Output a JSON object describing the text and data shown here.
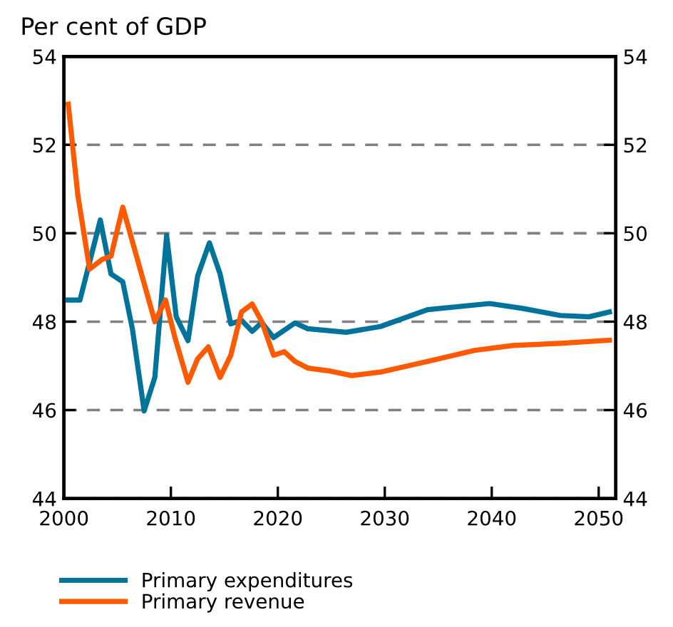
{
  "chart_data": {
    "type": "line",
    "title": "Per cent of GDP",
    "xlim": [
      2000,
      2051.6
    ],
    "xticks": [
      2000,
      2010,
      2020,
      2030,
      2040,
      2050
    ],
    "ylim": [
      44,
      54
    ],
    "yticks": [
      44,
      46,
      48,
      50,
      52,
      54
    ],
    "y2lim": [
      44,
      54
    ],
    "y2ticks": [
      44,
      46,
      48,
      50,
      52,
      54
    ],
    "grid": "y",
    "legend": "bottom",
    "series": [
      {
        "name": "Primary expenditures",
        "color": "#00739b",
        "x": [
          2000.4,
          2001.5,
          2003.4,
          2004.4,
          2005.5,
          2006.4,
          2007.5,
          2008.5,
          2009.6,
          2010.5,
          2011.6,
          2012.5,
          2013.6,
          2014.6,
          2015.6,
          2016.6,
          2017.6,
          2018.5,
          2019.6,
          2021.6,
          2022.8,
          2026.4,
          2029.6,
          2034,
          2039.8,
          2042.9,
          2046.4,
          2049.1,
          2051.0
        ],
        "values": [
          48.49,
          48.49,
          50.3,
          49.08,
          48.9,
          47.84,
          45.98,
          46.74,
          49.95,
          48.11,
          47.57,
          49.03,
          49.78,
          49.08,
          47.95,
          48.03,
          47.78,
          47.98,
          47.64,
          47.97,
          47.84,
          47.76,
          47.89,
          48.27,
          48.41,
          48.3,
          48.14,
          48.11,
          48.22
        ]
      },
      {
        "name": "Primary revenue",
        "color": "#ff5a00",
        "x": [
          2000.4,
          2001.3,
          2002.4,
          2003.6,
          2004.4,
          2005.5,
          2008.5,
          2009.5,
          2010.4,
          2011.6,
          2012.5,
          2013.5,
          2014.6,
          2015.6,
          2016.6,
          2017.6,
          2018.5,
          2019.6,
          2020.6,
          2021.6,
          2022.8,
          2024.7,
          2026.9,
          2029.6,
          2034,
          2038.4,
          2042,
          2046.4,
          2051.0
        ],
        "values": [
          52.92,
          50.86,
          49.19,
          49.41,
          49.48,
          50.59,
          48.0,
          48.49,
          47.62,
          46.63,
          47.16,
          47.43,
          46.74,
          47.24,
          48.22,
          48.4,
          48.0,
          47.24,
          47.32,
          47.1,
          46.95,
          46.89,
          46.78,
          46.86,
          47.1,
          47.35,
          47.46,
          47.51,
          47.58
        ]
      }
    ]
  }
}
